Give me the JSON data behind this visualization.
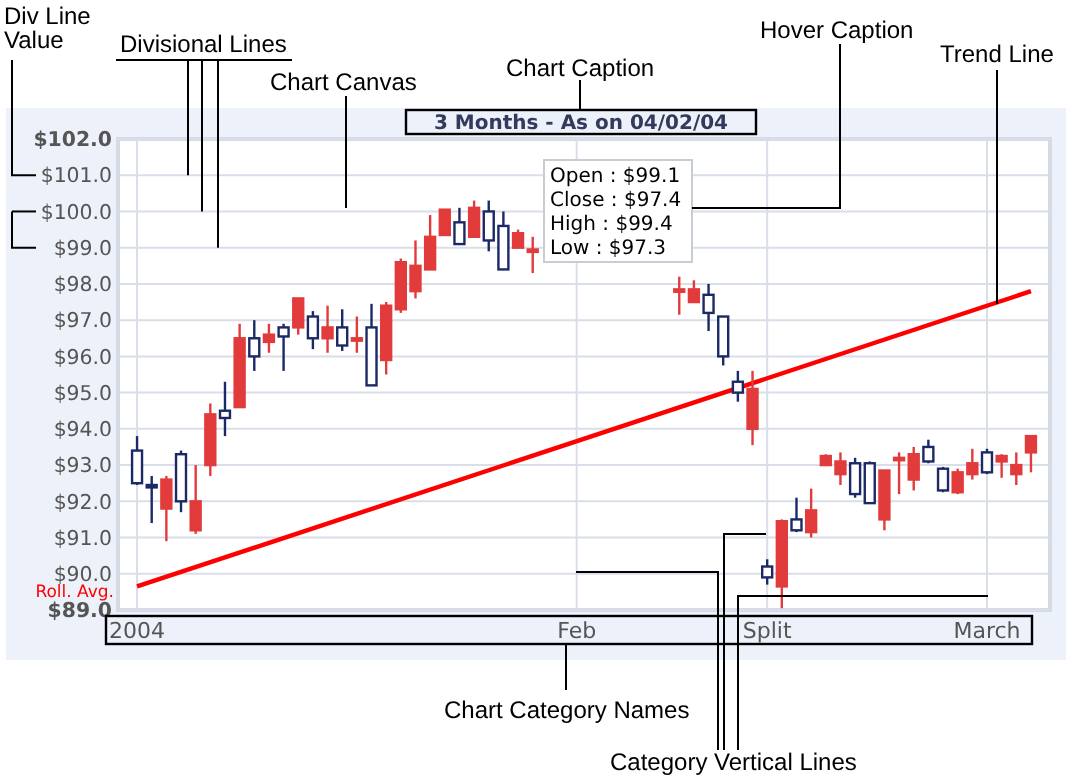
{
  "chart_data": {
    "type": "candlestick",
    "title": "3 Months - As on 04/02/04",
    "categories": [
      "2004",
      null,
      null,
      null,
      null,
      null,
      null,
      null,
      null,
      null,
      null,
      null,
      null,
      null,
      null,
      null,
      null,
      null,
      null,
      null,
      null,
      null,
      null,
      null,
      null,
      null,
      null,
      null,
      null,
      null,
      "Feb",
      null,
      null,
      null,
      null,
      null,
      null,
      null,
      null,
      null,
      null,
      null,
      null,
      "Split",
      null,
      null,
      null,
      null,
      null,
      null,
      null,
      null,
      null,
      null,
      null,
      null,
      null,
      null,
      "March",
      null,
      null,
      null
    ],
    "ylim": [
      89,
      102
    ],
    "yticks": [
      {
        "value": 89,
        "label": "$89.0"
      },
      {
        "value": 90,
        "label": "$90.0"
      },
      {
        "value": 91,
        "label": "$91.0"
      },
      {
        "value": 92,
        "label": "$92.0"
      },
      {
        "value": 93,
        "label": "$93.0"
      },
      {
        "value": 94,
        "label": "$94.0"
      },
      {
        "value": 95,
        "label": "$95.0"
      },
      {
        "value": 96,
        "label": "$96.0"
      },
      {
        "value": 97,
        "label": "$97.0"
      },
      {
        "value": 98,
        "label": "$98.0"
      },
      {
        "value": 99,
        "label": "$99.0"
      },
      {
        "value": 100,
        "label": "$100.0"
      },
      {
        "value": 101,
        "label": "$101.0"
      },
      {
        "value": 102,
        "label": "$102.0"
      }
    ],
    "grid": true,
    "ohlc": [
      [
        92.5,
        93.8,
        92.45,
        93.4
      ],
      [
        92.4,
        92.7,
        91.4,
        92.45
      ],
      [
        92.6,
        92.7,
        90.9,
        91.8
      ],
      [
        92.0,
        93.4,
        91.7,
        93.3
      ],
      [
        92.0,
        93.0,
        91.1,
        91.2
      ],
      [
        94.4,
        94.7,
        92.7,
        93.0
      ],
      [
        94.3,
        95.3,
        93.8,
        94.5
      ],
      [
        96.5,
        96.9,
        94.6,
        94.6
      ],
      [
        96.0,
        97.0,
        95.6,
        96.5
      ],
      [
        96.6,
        96.9,
        96.1,
        96.4
      ],
      [
        96.55,
        96.9,
        95.6,
        96.8
      ],
      [
        97.6,
        97.6,
        96.6,
        96.8
      ],
      [
        96.5,
        97.25,
        96.2,
        97.1
      ],
      [
        96.8,
        97.4,
        96.1,
        96.5
      ],
      [
        96.3,
        97.3,
        96.15,
        96.8
      ],
      [
        96.5,
        97.1,
        96.1,
        96.5
      ],
      [
        95.2,
        97.45,
        95.2,
        96.8
      ],
      [
        97.4,
        97.5,
        95.5,
        95.9
      ],
      [
        98.6,
        98.7,
        97.2,
        97.3
      ],
      [
        98.5,
        99.2,
        97.6,
        97.8
      ],
      [
        99.3,
        99.9,
        98.4,
        98.4
      ],
      [
        100.05,
        100.05,
        99.35,
        99.35
      ],
      [
        99.1,
        100.1,
        99.1,
        99.7
      ],
      [
        100.1,
        100.3,
        99.3,
        99.3
      ],
      [
        99.2,
        100.3,
        98.9,
        100.0
      ],
      [
        98.4,
        100.0,
        98.4,
        99.6
      ],
      [
        99.4,
        99.5,
        99.0,
        99.0
      ],
      [
        98.95,
        99.3,
        98.3,
        98.95
      ],
      null,
      null,
      null,
      null,
      null,
      null,
      null,
      null,
      null,
      [
        97.85,
        98.2,
        97.15,
        97.85
      ],
      [
        97.85,
        98.1,
        97.5,
        97.5
      ],
      [
        97.2,
        98.0,
        96.7,
        97.7
      ],
      [
        96.0,
        97.1,
        95.75,
        97.1
      ],
      [
        95.0,
        95.6,
        94.75,
        95.3
      ],
      [
        95.1,
        95.6,
        93.55,
        94.0
      ],
      [
        89.9,
        90.4,
        89.7,
        90.2
      ],
      [
        91.45,
        91.5,
        89.05,
        89.65
      ],
      [
        91.2,
        92.1,
        91.15,
        91.5
      ],
      [
        91.75,
        92.35,
        91.0,
        91.15
      ],
      [
        93.25,
        93.3,
        93.0,
        93.0
      ],
      [
        93.1,
        93.35,
        92.45,
        92.75
      ],
      [
        92.2,
        93.2,
        92.1,
        93.05
      ],
      [
        91.95,
        93.1,
        91.95,
        93.05
      ],
      [
        92.85,
        92.85,
        91.2,
        91.5
      ],
      [
        93.2,
        93.35,
        92.2,
        93.2
      ],
      [
        93.3,
        93.5,
        92.3,
        92.6
      ],
      [
        93.1,
        93.7,
        93.05,
        93.5
      ],
      [
        92.3,
        92.95,
        92.25,
        92.9
      ],
      [
        92.8,
        92.9,
        92.2,
        92.25
      ],
      [
        93.05,
        93.45,
        92.6,
        92.75
      ],
      [
        92.8,
        93.45,
        92.75,
        93.35
      ],
      [
        93.25,
        93.3,
        92.65,
        93.1
      ],
      [
        93.0,
        93.35,
        92.45,
        92.75
      ],
      [
        93.8,
        93.8,
        92.8,
        93.35
      ]
    ],
    "series": [
      {
        "name": "Roll. Avg.",
        "type": "line",
        "color": "#ff0000",
        "values": [
          89.65,
          null,
          null,
          null,
          null,
          null,
          null,
          null,
          null,
          null,
          null,
          null,
          null,
          null,
          null,
          null,
          null,
          null,
          null,
          null,
          null,
          null,
          null,
          null,
          null,
          null,
          null,
          null,
          null,
          null,
          null,
          null,
          null,
          null,
          null,
          null,
          null,
          null,
          null,
          null,
          null,
          null,
          null,
          null,
          null,
          null,
          null,
          null,
          null,
          null,
          null,
          null,
          null,
          null,
          null,
          null,
          null,
          null,
          null,
          null,
          null,
          97.8
        ]
      }
    ],
    "annotations": [
      "Open : $99.1",
      "Close : $97.4",
      "High : $99.4",
      "Low : $97.3",
      "Div Line Value",
      "Divisional Lines",
      "Chart Canvas",
      "Chart Caption",
      "Hover Caption",
      {
        "text": "Trend Line",
        "y": 97.45
      },
      "Chart Category Names",
      "Category Vertical Lines"
    ]
  }
}
